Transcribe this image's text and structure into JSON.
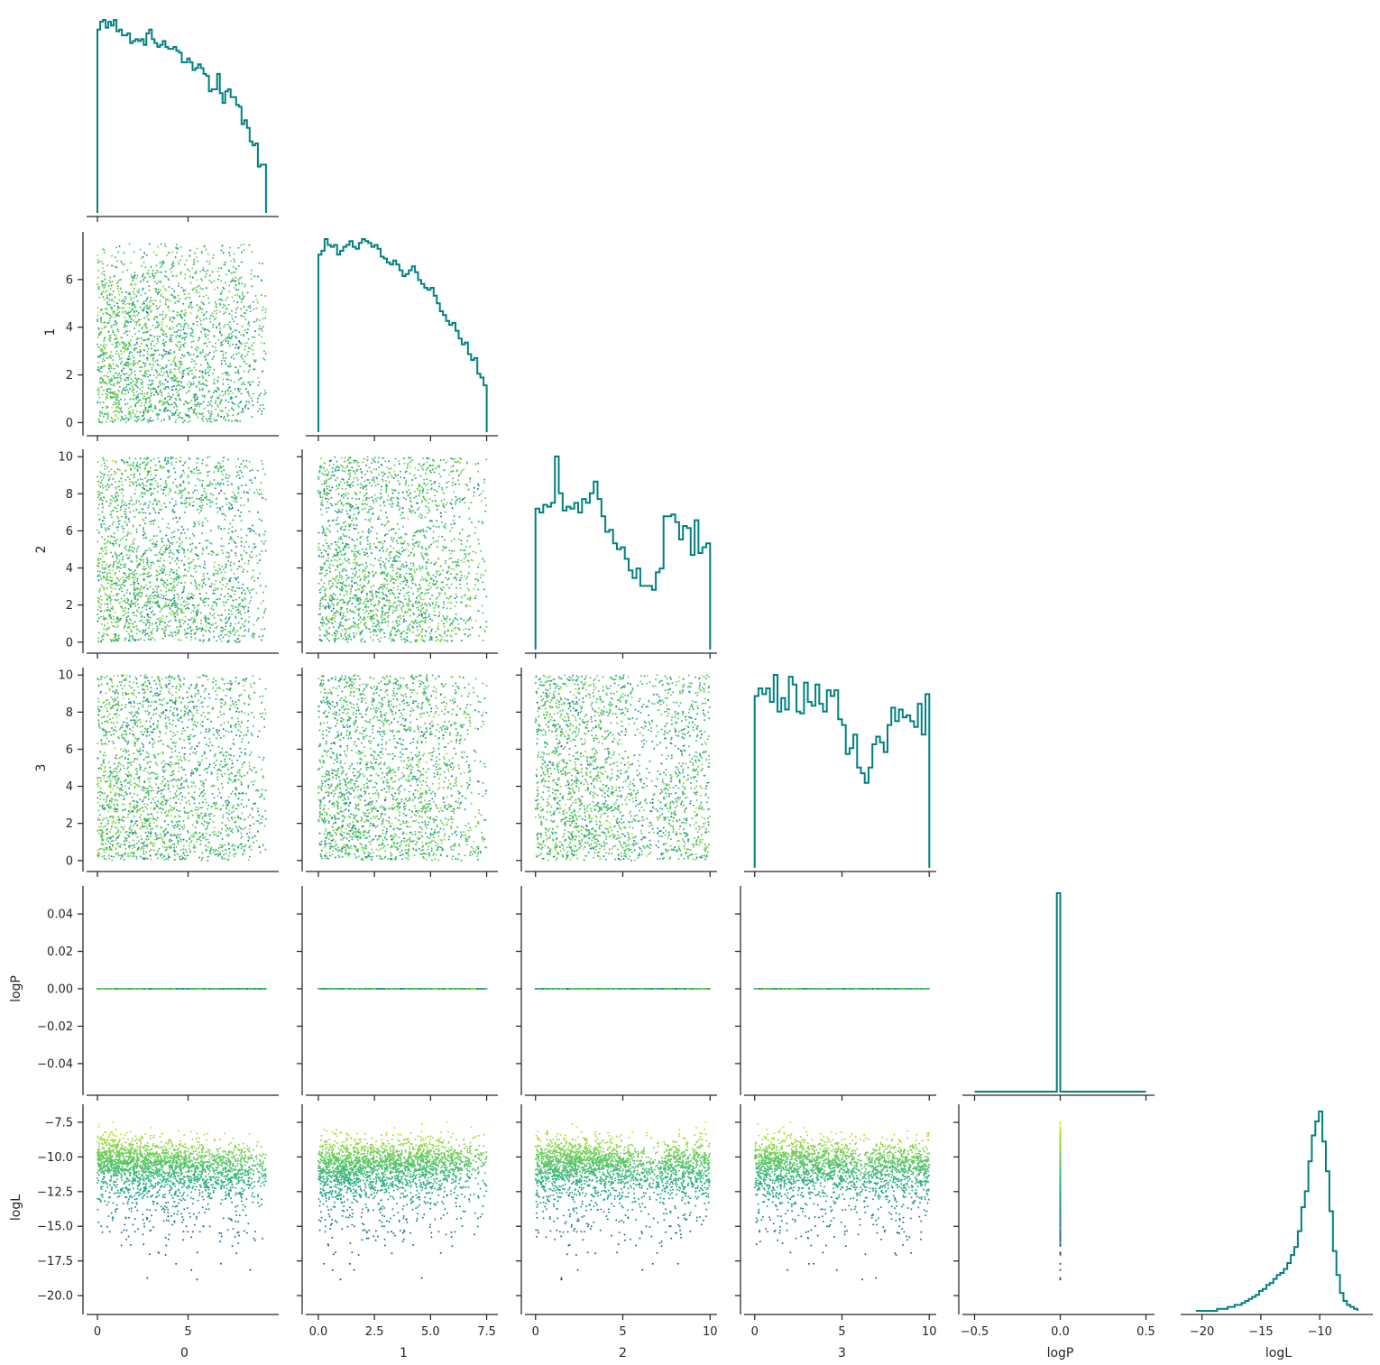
{
  "chart_data": {
    "type": "scatter",
    "variables": [
      "0",
      "1",
      "2",
      "3",
      "logP",
      "logL"
    ],
    "xlabels": [
      "0",
      "1",
      "2",
      "3",
      "logP",
      "logL"
    ],
    "ylabels": [
      "",
      "1",
      "2",
      "3",
      "logP",
      "logL"
    ],
    "color_scale": "viridis",
    "color_variable": "logL",
    "hist_color": "#008080",
    "ranges": {
      "0": [
        0,
        9.3
      ],
      "1": [
        0,
        7.5
      ],
      "2": [
        0,
        10
      ],
      "3": [
        0,
        10
      ],
      "logP": [
        -0.5,
        0.5
      ],
      "logL": [
        -20.5,
        -6.8
      ]
    },
    "axis_limits": {
      "0": [
        -0.4,
        10.0
      ],
      "1": [
        -0.4,
        8.0
      ],
      "2": [
        -0.4,
        10.4
      ],
      "3": [
        -0.4,
        10.4
      ],
      "logP": [
        -0.055,
        0.055
      ],
      "logL": [
        -21.1,
        -6.2
      ]
    },
    "axis_limits_x_logP": [
      -0.55,
      0.55
    ],
    "axis_limits_x_logL": [
      -21.5,
      -5.5
    ],
    "ticks": {
      "0": [
        0,
        5
      ],
      "1": [
        0,
        2,
        4,
        6
      ],
      "1_x": [
        0.0,
        2.5,
        5.0,
        7.5
      ],
      "2": [
        0,
        2,
        4,
        6,
        8,
        10
      ],
      "2_x": [
        0,
        5,
        10
      ],
      "3": [
        0,
        2,
        4,
        6,
        8,
        10
      ],
      "3_x": [
        0,
        5,
        10
      ],
      "logP": [
        -0.04,
        -0.02,
        0.0,
        0.02,
        0.04
      ],
      "logP_x": [
        -0.5,
        0.0,
        0.5
      ],
      "logL": [
        -20.0,
        -17.5,
        -15.0,
        -12.5,
        -10.0,
        -7.5
      ],
      "logL_x": [
        -20,
        -15,
        -10
      ]
    },
    "tick_labels": {
      "0": [
        "0",
        "5"
      ],
      "1": [
        "0",
        "2",
        "4",
        "6"
      ],
      "1_x": [
        "0.0",
        "2.5",
        "5.0",
        "7.5"
      ],
      "2": [
        "0",
        "2",
        "4",
        "6",
        "8",
        "10"
      ],
      "2_x": [
        "0",
        "5",
        "10"
      ],
      "3": [
        "0",
        "2",
        "4",
        "6",
        "8",
        "10"
      ],
      "3_x": [
        "0",
        "5",
        "10"
      ],
      "logP": [
        "−0.04",
        "−0.02",
        "0.00",
        "0.02",
        "0.04"
      ],
      "logP_x": [
        "−0.5",
        "0.0",
        "0.5"
      ],
      "logL": [
        "−20.0",
        "−17.5",
        "−15.0",
        "−12.5",
        "−10.0",
        "−7.5"
      ],
      "logL_x": [
        "−20",
        "−15",
        "−10"
      ]
    },
    "histograms": {
      "0": {
        "min": 0,
        "max": 9.3,
        "counts": [
          95,
          99,
          100,
          96,
          99,
          97,
          100,
          94,
          95,
          92,
          92,
          93,
          88,
          89,
          90,
          89,
          90,
          87,
          93,
          95,
          90,
          88,
          86,
          87,
          89,
          86,
          85,
          85,
          86,
          84,
          83,
          78,
          78,
          80,
          78,
          74,
          75,
          77,
          75,
          72,
          71,
          63,
          64,
          64,
          72,
          62,
          57,
          63,
          64,
          60,
          60,
          56,
          55,
          46,
          48,
          44,
          37,
          35,
          36,
          24,
          25,
          25
        ]
      },
      "1": {
        "min": 0,
        "max": 7.5,
        "counts": [
          91,
          93,
          99,
          96,
          95,
          96,
          91,
          93,
          95,
          96,
          98,
          95,
          94,
          97,
          99,
          98,
          97,
          95,
          96,
          94,
          90,
          89,
          87,
          86,
          88,
          86,
          83,
          80,
          81,
          83,
          85,
          82,
          78,
          76,
          74,
          73,
          74,
          70,
          66,
          62,
          60,
          57,
          55,
          56,
          52,
          48,
          45,
          46,
          40,
          37,
          38,
          30,
          28,
          24
        ]
      },
      "2": {
        "min": 0,
        "max": 10,
        "counts": [
          73,
          71,
          75,
          74,
          76,
          100,
          81,
          72,
          74,
          73,
          76,
          71,
          78,
          76,
          81,
          87,
          78,
          69,
          61,
          62,
          55,
          52,
          53,
          47,
          41,
          37,
          42,
          33,
          33,
          33,
          31,
          40,
          42,
          69,
          69,
          70,
          66,
          57,
          64,
          63,
          49,
          67,
          50,
          53,
          55
        ]
      },
      "3": {
        "min": 0,
        "max": 10,
        "counts": [
          89,
          93,
          90,
          93,
          86,
          100,
          81,
          88,
          82,
          99,
          95,
          81,
          80,
          96,
          86,
          84,
          95,
          85,
          81,
          92,
          89,
          92,
          77,
          74,
          59,
          62,
          69,
          52,
          49,
          44,
          52,
          64,
          68,
          65,
          60,
          74,
          83,
          76,
          82,
          78,
          79,
          76,
          73,
          85,
          69,
          90
        ]
      },
      "logP": {
        "min": -0.5,
        "max": 0.5,
        "counts": [
          0,
          0,
          0,
          0,
          0,
          0,
          0,
          0,
          0,
          0,
          0,
          0,
          0,
          0,
          0,
          0,
          0,
          0,
          0,
          0,
          0,
          0,
          0,
          0,
          100,
          0,
          0,
          0,
          0,
          0,
          0,
          0,
          0,
          0,
          0,
          0,
          0,
          0,
          0,
          0,
          0,
          0,
          0,
          0,
          0,
          0,
          0,
          0,
          0,
          0
        ]
      },
      "logL": {
        "min": -20.5,
        "max": -6.8,
        "counts": [
          0,
          0,
          0,
          0,
          0,
          0,
          1,
          1,
          1,
          2,
          2,
          3,
          3,
          4,
          5,
          6,
          7,
          8,
          10,
          11,
          13,
          14,
          16,
          18,
          19,
          21,
          24,
          28,
          32,
          40,
          52,
          60,
          75,
          88,
          95,
          100,
          85,
          70,
          50,
          30,
          18,
          9,
          5,
          3,
          2,
          1
        ]
      }
    }
  }
}
